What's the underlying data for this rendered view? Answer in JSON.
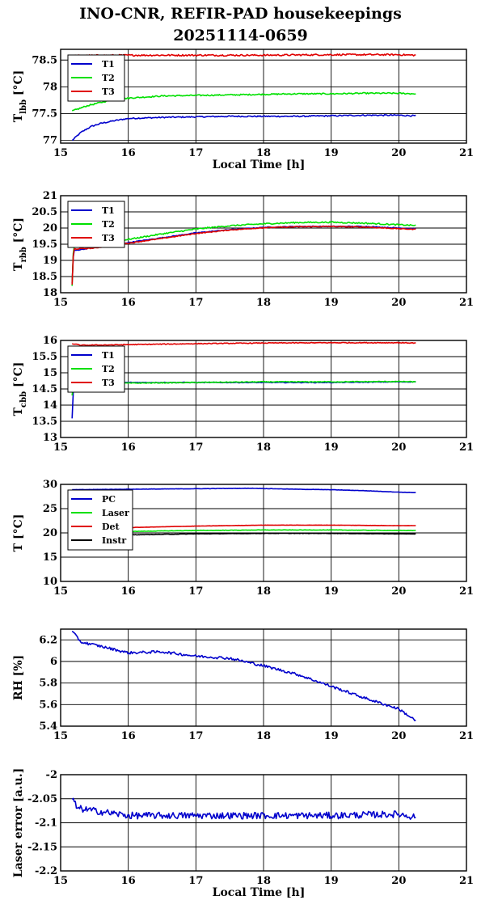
{
  "title_line1": "INO-CNR, REFIR-PAD housekeepings",
  "title_line2": "20251114-0659",
  "colors": {
    "blue": "#0000cc",
    "green": "#00e000",
    "red": "#e00000",
    "black": "#000000"
  },
  "chart_data": [
    {
      "type": "line",
      "ylabel": "T_lbb [°C]",
      "ylabel_main": "T",
      "ylabel_sub": "lbb",
      "ylabel_unit": " [°C]",
      "xlabel": "Local Time [h]",
      "xlim": [
        15,
        21
      ],
      "ylim": [
        76.95,
        78.7
      ],
      "xticks": [
        15,
        16,
        17,
        18,
        19,
        20,
        21
      ],
      "yticks": [
        77,
        77.5,
        78,
        78.5
      ],
      "ytick_labels": [
        "77",
        "77.5",
        "78",
        "78.5"
      ],
      "grid": true,
      "legend": "top-left",
      "series": [
        {
          "name": "T1",
          "color": "blue",
          "noise": 0.012,
          "points": [
            [
              15.17,
              77.0
            ],
            [
              15.3,
              77.15
            ],
            [
              15.45,
              77.26
            ],
            [
              15.6,
              77.32
            ],
            [
              15.8,
              77.37
            ],
            [
              16.0,
              77.41
            ],
            [
              16.5,
              77.43
            ],
            [
              17.0,
              77.44
            ],
            [
              17.5,
              77.45
            ],
            [
              18.0,
              77.45
            ],
            [
              18.5,
              77.45
            ],
            [
              19.0,
              77.46
            ],
            [
              19.5,
              77.47
            ],
            [
              20.0,
              77.47
            ],
            [
              20.25,
              77.46
            ]
          ]
        },
        {
          "name": "T2",
          "color": "green",
          "noise": 0.012,
          "points": [
            [
              15.17,
              77.55
            ],
            [
              15.4,
              77.65
            ],
            [
              15.7,
              77.74
            ],
            [
              16.0,
              77.79
            ],
            [
              16.5,
              77.83
            ],
            [
              17.0,
              77.84
            ],
            [
              17.5,
              77.85
            ],
            [
              18.0,
              77.86
            ],
            [
              18.5,
              77.87
            ],
            [
              19.0,
              77.87
            ],
            [
              19.5,
              77.88
            ],
            [
              20.0,
              77.88
            ],
            [
              20.25,
              77.87
            ]
          ]
        },
        {
          "name": "T3",
          "color": "red",
          "noise": 0.015,
          "points": [
            [
              15.17,
              78.58
            ],
            [
              16.0,
              78.59
            ],
            [
              17.0,
              78.59
            ],
            [
              18.0,
              78.59
            ],
            [
              19.0,
              78.6
            ],
            [
              20.0,
              78.6
            ],
            [
              20.25,
              78.59
            ]
          ]
        }
      ]
    },
    {
      "type": "line",
      "ylabel": "T_rbb [°C]",
      "ylabel_main": "T",
      "ylabel_sub": "rbb",
      "ylabel_unit": " [°C]",
      "xlabel": "",
      "xlim": [
        15,
        21
      ],
      "ylim": [
        18,
        21
      ],
      "xticks": [
        15,
        16,
        17,
        18,
        19,
        20,
        21
      ],
      "yticks": [
        18,
        18.5,
        19,
        19.5,
        20,
        20.5,
        21
      ],
      "ytick_labels": [
        "18",
        "18.5",
        "19",
        "19.5",
        "20",
        "20.5",
        "21"
      ],
      "grid": true,
      "legend": "top-left",
      "series": [
        {
          "name": "T1",
          "color": "blue",
          "noise": 0.012,
          "points": [
            [
              15.17,
              18.3
            ],
            [
              15.19,
              19.3
            ],
            [
              15.5,
              19.4
            ],
            [
              16.0,
              19.55
            ],
            [
              16.5,
              19.7
            ],
            [
              17.0,
              19.85
            ],
            [
              17.5,
              19.95
            ],
            [
              18.0,
              20.02
            ],
            [
              18.5,
              20.05
            ],
            [
              19.0,
              20.05
            ],
            [
              19.5,
              20.05
            ],
            [
              20.0,
              20.0
            ],
            [
              20.25,
              19.98
            ]
          ]
        },
        {
          "name": "T2",
          "color": "green",
          "noise": 0.02,
          "points": [
            [
              15.17,
              18.2
            ],
            [
              15.19,
              19.45
            ],
            [
              15.5,
              19.5
            ],
            [
              16.0,
              19.65
            ],
            [
              16.5,
              19.82
            ],
            [
              17.0,
              19.97
            ],
            [
              17.5,
              20.07
            ],
            [
              18.0,
              20.13
            ],
            [
              18.5,
              20.17
            ],
            [
              19.0,
              20.18
            ],
            [
              19.5,
              20.15
            ],
            [
              20.0,
              20.1
            ],
            [
              20.25,
              20.08
            ]
          ]
        },
        {
          "name": "T3",
          "color": "red",
          "noise": 0.012,
          "points": [
            [
              15.17,
              18.25
            ],
            [
              15.19,
              19.35
            ],
            [
              15.5,
              19.38
            ],
            [
              16.0,
              19.53
            ],
            [
              16.5,
              19.68
            ],
            [
              17.0,
              19.83
            ],
            [
              17.5,
              19.94
            ],
            [
              18.0,
              20.01
            ],
            [
              18.5,
              20.04
            ],
            [
              19.0,
              20.05
            ],
            [
              19.5,
              20.03
            ],
            [
              20.0,
              19.98
            ],
            [
              20.25,
              19.96
            ]
          ]
        }
      ]
    },
    {
      "type": "line",
      "ylabel": "T_cbb [°C]",
      "ylabel_main": "T",
      "ylabel_sub": "cbb",
      "ylabel_unit": " [°C]",
      "xlabel": "",
      "xlim": [
        15,
        21
      ],
      "ylim": [
        13,
        16
      ],
      "xticks": [
        15,
        16,
        17,
        18,
        19,
        20,
        21
      ],
      "yticks": [
        13,
        13.5,
        14,
        14.5,
        15,
        15.5,
        16
      ],
      "ytick_labels": [
        "13",
        "13.5",
        "14",
        "14.5",
        "15",
        "15.5",
        "16"
      ],
      "grid": true,
      "legend": "top-left",
      "series": [
        {
          "name": "T1",
          "color": "blue",
          "noise": 0.01,
          "points": [
            [
              15.17,
              13.6
            ],
            [
              15.19,
              14.6
            ],
            [
              15.3,
              14.7
            ],
            [
              16.0,
              14.7
            ],
            [
              17.0,
              14.7
            ],
            [
              18.0,
              14.7
            ],
            [
              19.0,
              14.7
            ],
            [
              20.0,
              14.72
            ],
            [
              20.25,
              14.72
            ]
          ]
        },
        {
          "name": "T2",
          "color": "green",
          "noise": 0.012,
          "points": [
            [
              15.17,
              14.3
            ],
            [
              15.19,
              14.65
            ],
            [
              15.3,
              14.68
            ],
            [
              16.0,
              14.68
            ],
            [
              17.0,
              14.7
            ],
            [
              18.0,
              14.72
            ],
            [
              19.0,
              14.72
            ],
            [
              20.0,
              14.73
            ],
            [
              20.25,
              14.72
            ]
          ]
        },
        {
          "name": "T3",
          "color": "red",
          "noise": 0.012,
          "points": [
            [
              15.17,
              15.9
            ],
            [
              15.3,
              15.85
            ],
            [
              16.0,
              15.87
            ],
            [
              17.0,
              15.9
            ],
            [
              18.0,
              15.92
            ],
            [
              19.0,
              15.93
            ],
            [
              20.0,
              15.93
            ],
            [
              20.25,
              15.92
            ]
          ]
        }
      ]
    },
    {
      "type": "line",
      "ylabel": "T [°C]",
      "ylabel_main": "T [°C]",
      "ylabel_sub": "",
      "ylabel_unit": "",
      "xlabel": "",
      "xlim": [
        15,
        21
      ],
      "ylim": [
        10,
        30
      ],
      "xticks": [
        15,
        16,
        17,
        18,
        19,
        20,
        21
      ],
      "yticks": [
        10,
        15,
        20,
        25,
        30
      ],
      "ytick_labels": [
        "10",
        "15",
        "20",
        "25",
        "30"
      ],
      "grid": true,
      "legend": "top-left",
      "series": [
        {
          "name": "PC",
          "color": "blue",
          "noise": 0.03,
          "points": [
            [
              15.17,
              28.9
            ],
            [
              16.0,
              29.0
            ],
            [
              17.0,
              29.1
            ],
            [
              17.8,
              29.2
            ],
            [
              18.5,
              29.0
            ],
            [
              19.0,
              28.9
            ],
            [
              19.5,
              28.7
            ],
            [
              20.0,
              28.4
            ],
            [
              20.25,
              28.3
            ]
          ]
        },
        {
          "name": "Laser",
          "color": "green",
          "noise": 0.04,
          "points": [
            [
              15.17,
              20.0
            ],
            [
              16.0,
              20.3
            ],
            [
              17.0,
              20.5
            ],
            [
              18.0,
              20.6
            ],
            [
              19.0,
              20.6
            ],
            [
              20.0,
              20.5
            ],
            [
              20.25,
              20.5
            ]
          ]
        },
        {
          "name": "Det",
          "color": "red",
          "noise": 0.02,
          "points": [
            [
              15.17,
              20.9
            ],
            [
              16.0,
              21.1
            ],
            [
              17.0,
              21.4
            ],
            [
              18.0,
              21.6
            ],
            [
              19.0,
              21.6
            ],
            [
              20.0,
              21.5
            ],
            [
              20.25,
              21.5
            ]
          ]
        },
        {
          "name": "Instr",
          "color": "black",
          "noise": 0.04,
          "points": [
            [
              15.17,
              19.4
            ],
            [
              16.0,
              19.6
            ],
            [
              17.0,
              19.8
            ],
            [
              18.0,
              19.9
            ],
            [
              19.0,
              19.9
            ],
            [
              20.0,
              19.8
            ],
            [
              20.25,
              19.8
            ]
          ]
        }
      ]
    },
    {
      "type": "line",
      "ylabel": "RH [%]",
      "ylabel_main": "RH [%]",
      "ylabel_sub": "",
      "ylabel_unit": "",
      "xlabel": "",
      "xlim": [
        15,
        21
      ],
      "ylim": [
        5.4,
        6.3
      ],
      "xticks": [
        15,
        16,
        17,
        18,
        19,
        20,
        21
      ],
      "yticks": [
        5.4,
        5.6,
        5.8,
        6.0,
        6.2
      ],
      "ytick_labels": [
        "5.4",
        "5.6",
        "5.8",
        "6",
        "6.2"
      ],
      "grid": true,
      "legend": "",
      "series": [
        {
          "name": "",
          "color": "blue",
          "noise": 0.012,
          "points": [
            [
              15.17,
              6.28
            ],
            [
              15.3,
              6.18
            ],
            [
              15.6,
              6.14
            ],
            [
              16.0,
              6.08
            ],
            [
              16.5,
              6.09
            ],
            [
              17.0,
              6.05
            ],
            [
              17.5,
              6.03
            ],
            [
              18.0,
              5.96
            ],
            [
              18.5,
              5.88
            ],
            [
              19.0,
              5.77
            ],
            [
              19.5,
              5.66
            ],
            [
              20.0,
              5.56
            ],
            [
              20.25,
              5.45
            ]
          ]
        }
      ]
    },
    {
      "type": "line",
      "ylabel": "Laser error [a.u.]",
      "ylabel_main": "Laser error [a.u.]",
      "ylabel_sub": "",
      "ylabel_unit": "",
      "xlabel": "Local Time [h]",
      "xlim": [
        15,
        21
      ],
      "ylim": [
        -2.2,
        -2.0
      ],
      "xticks": [
        15,
        16,
        17,
        18,
        19,
        20,
        21
      ],
      "yticks": [
        -2.2,
        -2.15,
        -2.1,
        -2.05,
        -2.0
      ],
      "ytick_labels": [
        "-2.2",
        "-2.15",
        "-2.1",
        "-2.05",
        "-2"
      ],
      "grid": true,
      "legend": "",
      "series": [
        {
          "name": "",
          "color": "blue",
          "noise": 0.007,
          "points": [
            [
              15.17,
              -2.05
            ],
            [
              15.25,
              -2.07
            ],
            [
              16.0,
              -2.085
            ],
            [
              17.0,
              -2.085
            ],
            [
              18.0,
              -2.085
            ],
            [
              19.0,
              -2.085
            ],
            [
              20.0,
              -2.082
            ],
            [
              20.25,
              -2.088
            ]
          ]
        }
      ]
    }
  ]
}
